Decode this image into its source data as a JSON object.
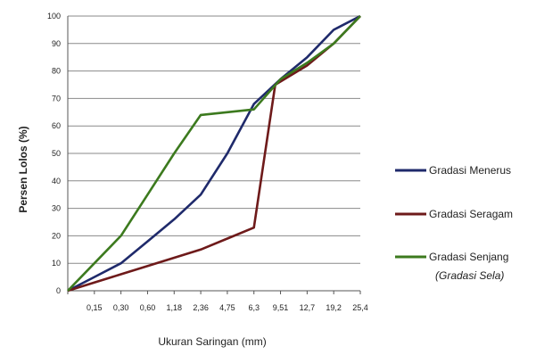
{
  "chart_data": {
    "type": "line",
    "title": "",
    "xlabel": "Ukuran Saringan (mm)",
    "ylabel": "Persen Lolos (%)",
    "ylim": [
      0,
      100
    ],
    "yticks": [
      "0",
      "10",
      "20",
      "30",
      "40",
      "50",
      "60",
      "70",
      "80",
      "90",
      "100"
    ],
    "categories": [
      "0,15",
      "0,30",
      "0,60",
      "1,18",
      "2,36",
      "4,75",
      "6,3",
      "9,51",
      "12,7",
      "19,2",
      "25,4"
    ],
    "grid": "horizontal",
    "legend_position": "right",
    "series": [
      {
        "name": "Gradasi Menerus",
        "color": "#1f2a6b",
        "points": [
          [
            0,
            0
          ],
          [
            1,
            5
          ],
          [
            2,
            10
          ],
          [
            3,
            18
          ],
          [
            4,
            26
          ],
          [
            5,
            35
          ],
          [
            6,
            50
          ],
          [
            7,
            68
          ],
          [
            8,
            77
          ],
          [
            9,
            85
          ],
          [
            10,
            95
          ],
          [
            11,
            100
          ]
        ]
      },
      {
        "name": "Gradasi Seragam",
        "color": "#6e1a1a",
        "points": [
          [
            0,
            0
          ],
          [
            1,
            3
          ],
          [
            2,
            6
          ],
          [
            3,
            9
          ],
          [
            4,
            12
          ],
          [
            5,
            15
          ],
          [
            6,
            19
          ],
          [
            7,
            23
          ],
          [
            7.8,
            75
          ],
          [
            9,
            82
          ],
          [
            10,
            90
          ],
          [
            11,
            100
          ]
        ]
      },
      {
        "name": "Gradasi Senjang",
        "subname": "(Gradasi Sela)",
        "color": "#3c7a1e",
        "points": [
          [
            0,
            0
          ],
          [
            1,
            10
          ],
          [
            2,
            20
          ],
          [
            3,
            35
          ],
          [
            4,
            50
          ],
          [
            5,
            64
          ],
          [
            6,
            65
          ],
          [
            7,
            66
          ],
          [
            8,
            77
          ],
          [
            9,
            83
          ],
          [
            10,
            90
          ],
          [
            11,
            100
          ]
        ]
      }
    ]
  }
}
